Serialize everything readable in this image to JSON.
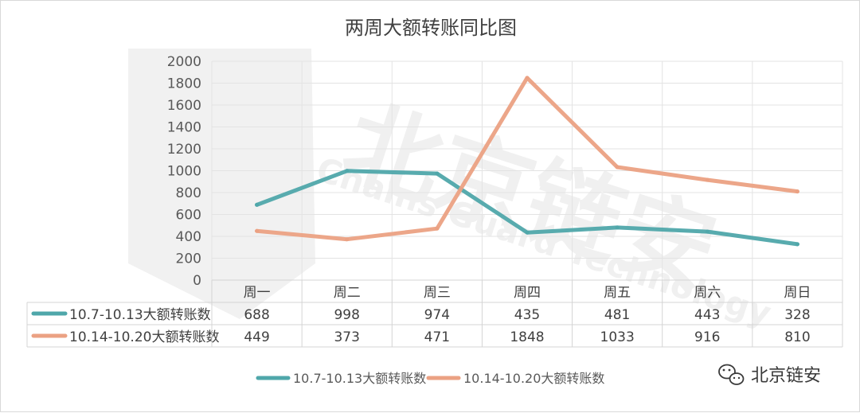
{
  "chart_data": {
    "type": "line",
    "title": "两周大额转账同比图",
    "categories": [
      "周一",
      "周二",
      "周三",
      "周四",
      "周五",
      "周六",
      "周日"
    ],
    "ylim": [
      0,
      2000
    ],
    "ytick_step": 200,
    "grid": true,
    "legend_position": "bottom",
    "series": [
      {
        "name": "10.7-10.13大额转账数",
        "values": [
          688,
          998,
          974,
          435,
          481,
          443,
          328
        ],
        "color": "#4fa7aa"
      },
      {
        "name": "10.14-10.20大额转账数",
        "values": [
          449,
          373,
          471,
          1848,
          1033,
          916,
          810
        ],
        "color": "#eba183"
      }
    ]
  },
  "watermark": {
    "text": "北京链安",
    "subtext": "Chains Guard Technology"
  },
  "brand": {
    "icon": "wechat-icon",
    "text": "北京链安"
  }
}
